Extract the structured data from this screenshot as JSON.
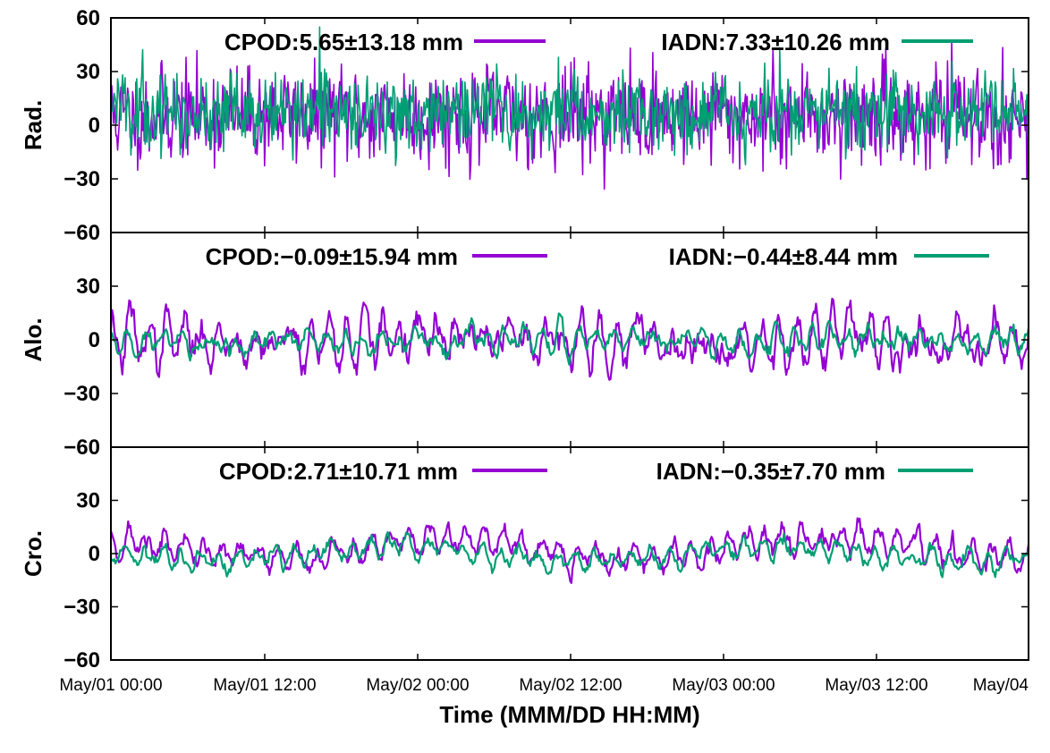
{
  "chart_data": {
    "type": "line",
    "xlabel": "Time (MMM/DD HH:MM)",
    "x_ticks": [
      "May/01 00:00",
      "May/01 12:00",
      "May/02 00:00",
      "May/02 12:00",
      "May/03 00:00",
      "May/03 12:00",
      "May/04"
    ],
    "xlim": [
      "May/01 00:00",
      "May/04 02:00"
    ],
    "grid": false,
    "legend_placement": "top",
    "colors": {
      "CPOD": "#9400d3",
      "IADN": "#009e73"
    },
    "panels": [
      {
        "ylabel": "Rad.",
        "ylim": [
          -60,
          60
        ],
        "y_ticks": [
          "60",
          "30",
          "0",
          "−30",
          "−60"
        ],
        "legend": [
          "CPOD:5.65±13.18 mm",
          "IADN:7.33±10.26 mm"
        ],
        "series": [
          {
            "name": "CPOD",
            "mean": 5.65,
            "std": 13.18
          },
          {
            "name": "IADN",
            "mean": 7.33,
            "std": 10.26
          }
        ]
      },
      {
        "ylabel": "Alo.",
        "ylim": [
          -60,
          60
        ],
        "y_ticks": [
          "",
          "30",
          "0",
          "−30",
          "−60"
        ],
        "legend": [
          "CPOD:−0.09±15.94 mm",
          "IADN:−0.44±8.44 mm"
        ],
        "series": [
          {
            "name": "CPOD",
            "mean": -0.09,
            "std": 15.94
          },
          {
            "name": "IADN",
            "mean": -0.44,
            "std": 8.44
          }
        ]
      },
      {
        "ylabel": "Cro.",
        "ylim": [
          -60,
          60
        ],
        "y_ticks": [
          "",
          "30",
          "0",
          "−30",
          "−60"
        ],
        "legend": [
          "CPOD:2.71±10.71 mm",
          "IADN:−0.35±7.70 mm"
        ],
        "series": [
          {
            "name": "CPOD",
            "mean": 2.71,
            "std": 10.71
          },
          {
            "name": "IADN",
            "mean": -0.35,
            "std": 7.7
          }
        ]
      }
    ]
  }
}
